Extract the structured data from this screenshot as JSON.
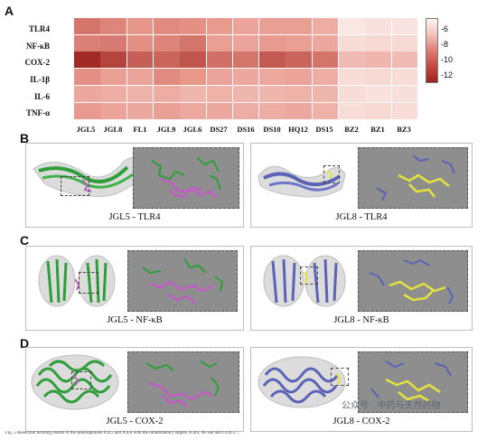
{
  "panels": {
    "a": "A",
    "b": "B",
    "c": "C",
    "d": "D"
  },
  "heatmap": {
    "rows": [
      "TLR4",
      "NF-κB",
      "COX-2",
      "IL-1β",
      "IL-6",
      "TNF-α"
    ],
    "columns": [
      "JGL5",
      "JGL8",
      "FL1",
      "JGL9",
      "JGL6",
      "DS27",
      "DS16",
      "DS10",
      "HQ12",
      "DS15",
      "BZ2",
      "BZ1",
      "BZ3"
    ],
    "colorbar_ticks": [
      "-6",
      "-8",
      "-10",
      "-12"
    ],
    "colors": {
      "low": "#fbe9e7",
      "high": "#b7332d"
    }
  },
  "chart_data": {
    "type": "heatmap",
    "rows": [
      "TLR4",
      "NF-κB",
      "COX-2",
      "IL-1β",
      "IL-6",
      "TNF-α"
    ],
    "columns": [
      "JGL5",
      "JGL8",
      "FL1",
      "JGL9",
      "JGL6",
      "DS27",
      "DS16",
      "DS10",
      "HQ12",
      "DS15",
      "BZ2",
      "BZ1",
      "BZ3"
    ],
    "values": [
      [
        -10.2,
        -9.6,
        -9.0,
        -9.4,
        -9.2,
        -8.8,
        -8.4,
        -8.6,
        -8.6,
        -8.0,
        -5.6,
        -5.8,
        -5.7
      ],
      [
        -9.8,
        -10.0,
        -9.2,
        -9.6,
        -10.2,
        -8.6,
        -8.4,
        -8.8,
        -8.6,
        -8.2,
        -6.0,
        -6.2,
        -6.1
      ],
      [
        -13.0,
        -12.0,
        -11.0,
        -10.8,
        -11.4,
        -10.4,
        -10.2,
        -11.2,
        -10.8,
        -10.2,
        -7.4,
        -7.6,
        -7.4
      ],
      [
        -9.2,
        -8.6,
        -8.4,
        -9.4,
        -9.0,
        -8.4,
        -8.2,
        -8.2,
        -8.4,
        -8.0,
        -6.0,
        -6.2,
        -6.0
      ],
      [
        -8.2,
        -8.0,
        -7.8,
        -8.0,
        -7.6,
        -7.8,
        -7.6,
        -7.6,
        -7.8,
        -7.6,
        -6.0,
        -5.8,
        -5.9
      ],
      [
        -8.8,
        -8.4,
        -8.2,
        -8.6,
        -8.2,
        -8.2,
        -8.0,
        -8.0,
        -8.2,
        -7.8,
        -6.0,
        -6.2,
        -6.0
      ]
    ],
    "colorbar": {
      "ticks": [
        -6,
        -8,
        -10,
        -12
      ],
      "range": [
        -13,
        -5
      ]
    }
  },
  "docking": [
    {
      "caption": "JGL5 - TLR4",
      "protein_color": "#2f9e3a",
      "ligand_color": "#c05ec3"
    },
    {
      "caption": "JGL8 - TLR4",
      "protein_color": "#5b63b7",
      "ligand_color": "#e4e23c"
    },
    {
      "caption": "JGL5 - NF-κB",
      "protein_color": "#2f9e3a",
      "ligand_color": "#c05ec3"
    },
    {
      "caption": "JGL8 - NF-κB",
      "protein_color": "#5b63b7",
      "ligand_color": "#e4e23c"
    },
    {
      "caption": "JGL5 - COX-2",
      "protein_color": "#2f9e3a",
      "ligand_color": "#c05ec3"
    },
    {
      "caption": "JGL8 - COX-2",
      "protein_color": "#5b63b7",
      "ligand_color": "#e4e23c"
    }
  ],
  "footer_text": "Fig. 5 Molecular docking results of the saikosaponins JGL5 and JGL8 with the inflammatory targets TLR4, NF-κB and COX-2 ...",
  "watermark": "公众号 · 中药与天然药物"
}
